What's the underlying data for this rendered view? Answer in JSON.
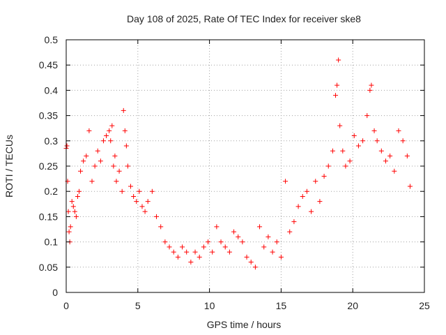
{
  "chart_data": {
    "type": "scatter",
    "title": "Day 108 of 2025, Rate Of TEC Index for receiver ske8",
    "xlabel": "GPS time / hours",
    "ylabel": "ROTI / TECUs",
    "xlim": [
      0,
      25
    ],
    "ylim": [
      0,
      0.5
    ],
    "xticks": [
      "0",
      "5",
      "10",
      "15",
      "20",
      "25"
    ],
    "yticks": [
      "0",
      "0.05",
      "0.1",
      "0.15",
      "0.2",
      "0.25",
      "0.3",
      "0.35",
      "0.4",
      "0.45",
      "0.5"
    ],
    "grid": true,
    "marker": "+",
    "color": "#ff0000",
    "series": [
      {
        "x": [
          0.0,
          0.05,
          0.1,
          0.15,
          0.2,
          0.25,
          0.3,
          0.4,
          0.5,
          0.6,
          0.7,
          0.8,
          0.9,
          1.0,
          1.2,
          1.4,
          1.6,
          1.8,
          2.0,
          2.2,
          2.4,
          2.6,
          2.8,
          3.0,
          3.1,
          3.2,
          3.3,
          3.4,
          3.5,
          3.7,
          3.9,
          4.0,
          4.1,
          4.2,
          4.3,
          4.5,
          4.7,
          4.9,
          5.1,
          5.3,
          5.5,
          5.7,
          6.0,
          6.3,
          6.6,
          6.9,
          7.2,
          7.5,
          7.8,
          8.1,
          8.4,
          8.7,
          9.0,
          9.3,
          9.6,
          9.9,
          10.2,
          10.5,
          10.8,
          11.1,
          11.4,
          11.7,
          12.0,
          12.3,
          12.6,
          12.9,
          13.2,
          13.5,
          13.8,
          14.1,
          14.4,
          14.7,
          15.0,
          15.3,
          15.6,
          15.9,
          16.2,
          16.5,
          16.8,
          17.1,
          17.4,
          17.7,
          18.0,
          18.3,
          18.6,
          18.8,
          18.9,
          19.0,
          19.1,
          19.3,
          19.5,
          19.8,
          20.1,
          20.4,
          20.7,
          21.0,
          21.2,
          21.3,
          21.5,
          21.7,
          22.0,
          22.3,
          22.6,
          22.9,
          23.2,
          23.5,
          23.8,
          24.0
        ],
        "y": [
          0.285,
          0.29,
          0.22,
          0.16,
          0.12,
          0.1,
          0.13,
          0.18,
          0.17,
          0.16,
          0.15,
          0.19,
          0.2,
          0.24,
          0.26,
          0.27,
          0.32,
          0.22,
          0.25,
          0.28,
          0.26,
          0.3,
          0.31,
          0.32,
          0.3,
          0.33,
          0.25,
          0.27,
          0.22,
          0.24,
          0.2,
          0.36,
          0.32,
          0.29,
          0.25,
          0.21,
          0.19,
          0.18,
          0.2,
          0.17,
          0.16,
          0.18,
          0.2,
          0.15,
          0.13,
          0.1,
          0.09,
          0.08,
          0.07,
          0.09,
          0.08,
          0.06,
          0.08,
          0.07,
          0.09,
          0.1,
          0.08,
          0.13,
          0.1,
          0.09,
          0.08,
          0.12,
          0.11,
          0.1,
          0.07,
          0.06,
          0.05,
          0.13,
          0.09,
          0.11,
          0.08,
          0.1,
          0.07,
          0.22,
          0.12,
          0.14,
          0.17,
          0.19,
          0.2,
          0.16,
          0.22,
          0.18,
          0.23,
          0.25,
          0.28,
          0.39,
          0.41,
          0.46,
          0.33,
          0.28,
          0.25,
          0.26,
          0.31,
          0.29,
          0.3,
          0.35,
          0.4,
          0.41,
          0.32,
          0.3,
          0.28,
          0.26,
          0.27,
          0.24,
          0.32,
          0.3,
          0.27,
          0.21
        ]
      }
    ]
  }
}
